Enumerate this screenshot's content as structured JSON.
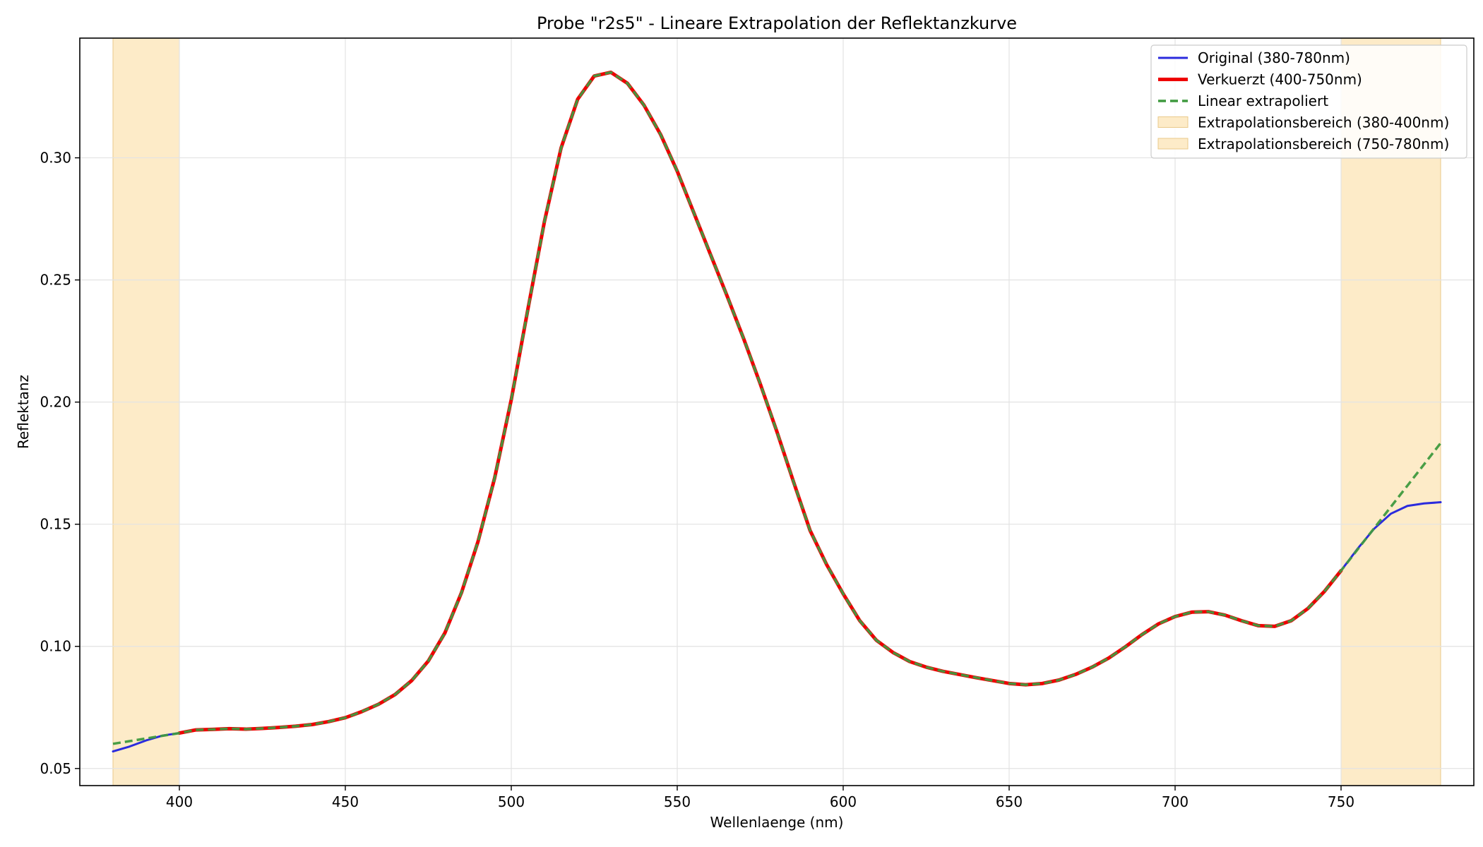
{
  "chart_data": {
    "type": "line",
    "title": "Probe \"r2s5\" - Lineare Extrapolation der Reflektanzkurve",
    "xlabel": "Wellenlaenge (nm)",
    "ylabel": "Reflektanz",
    "xlim": [
      370,
      790
    ],
    "ylim": [
      0.043,
      0.349
    ],
    "xticks": [
      400,
      450,
      500,
      550,
      600,
      650,
      700,
      750
    ],
    "xtick_labels": [
      "400",
      "450",
      "500",
      "550",
      "600",
      "650",
      "700",
      "750"
    ],
    "yticks": [
      0.05,
      0.1,
      0.15,
      0.2,
      0.25,
      0.3
    ],
    "ytick_labels": [
      "0.05",
      "0.10",
      "0.15",
      "0.20",
      "0.25",
      "0.30"
    ],
    "grid": true,
    "legend_position": "top-right",
    "spans": [
      {
        "name": "Extrapolationsbereich (380-400nm)",
        "x0": 380,
        "x1": 400,
        "color": "#fdebc8"
      },
      {
        "name": "Extrapolationsbereich (750-780nm)",
        "x0": 750,
        "x1": 780,
        "color": "#fdebc8"
      }
    ],
    "series": [
      {
        "name": "Original (380-780nm)",
        "color": "#2b2bdd",
        "style": "solid",
        "width": 3,
        "x": [
          380,
          385,
          390,
          395,
          400,
          405,
          410,
          415,
          420,
          425,
          430,
          435,
          440,
          445,
          450,
          455,
          460,
          465,
          470,
          475,
          480,
          485,
          490,
          495,
          500,
          505,
          510,
          515,
          520,
          525,
          530,
          535,
          540,
          545,
          550,
          555,
          560,
          565,
          570,
          575,
          580,
          585,
          590,
          595,
          600,
          605,
          610,
          615,
          620,
          625,
          630,
          635,
          640,
          645,
          650,
          655,
          660,
          665,
          670,
          675,
          680,
          685,
          690,
          695,
          700,
          705,
          710,
          715,
          720,
          725,
          730,
          735,
          740,
          745,
          750,
          755,
          760,
          765,
          770,
          775,
          780
        ],
        "y": [
          0.057,
          0.059,
          0.0615,
          0.0635,
          0.0645,
          0.0658,
          0.066,
          0.0663,
          0.0661,
          0.0664,
          0.0668,
          0.0673,
          0.068,
          0.0692,
          0.0708,
          0.0733,
          0.0763,
          0.0803,
          0.086,
          0.094,
          0.1055,
          0.122,
          0.143,
          0.169,
          0.201,
          0.238,
          0.274,
          0.304,
          0.324,
          0.3335,
          0.335,
          0.3305,
          0.3215,
          0.3095,
          0.2945,
          0.2775,
          0.2605,
          0.2435,
          0.226,
          0.2075,
          0.188,
          0.1675,
          0.1475,
          0.1335,
          0.1215,
          0.1105,
          0.1025,
          0.0975,
          0.0938,
          0.0915,
          0.0898,
          0.0885,
          0.0872,
          0.086,
          0.0848,
          0.0843,
          0.0848,
          0.0862,
          0.0885,
          0.0915,
          0.0952,
          0.0998,
          0.1048,
          0.1092,
          0.1122,
          0.114,
          0.1142,
          0.1128,
          0.1105,
          0.1085,
          0.1082,
          0.1105,
          0.1155,
          0.1225,
          0.131,
          0.14,
          0.1482,
          0.1543,
          0.1575,
          0.1585,
          0.159
        ]
      },
      {
        "name": "Verkuerzt (400-750nm)",
        "color": "#ee0000",
        "style": "solid",
        "width": 5,
        "x": [
          400,
          405,
          410,
          415,
          420,
          425,
          430,
          435,
          440,
          445,
          450,
          455,
          460,
          465,
          470,
          475,
          480,
          485,
          490,
          495,
          500,
          505,
          510,
          515,
          520,
          525,
          530,
          535,
          540,
          545,
          550,
          555,
          560,
          565,
          570,
          575,
          580,
          585,
          590,
          595,
          600,
          605,
          610,
          615,
          620,
          625,
          630,
          635,
          640,
          645,
          650,
          655,
          660,
          665,
          670,
          675,
          680,
          685,
          690,
          695,
          700,
          705,
          710,
          715,
          720,
          725,
          730,
          735,
          740,
          745,
          750
        ],
        "y": [
          0.0645,
          0.0658,
          0.066,
          0.0663,
          0.0661,
          0.0664,
          0.0668,
          0.0673,
          0.068,
          0.0692,
          0.0708,
          0.0733,
          0.0763,
          0.0803,
          0.086,
          0.094,
          0.1055,
          0.122,
          0.143,
          0.169,
          0.201,
          0.238,
          0.274,
          0.304,
          0.324,
          0.3335,
          0.335,
          0.3305,
          0.3215,
          0.3095,
          0.2945,
          0.2775,
          0.2605,
          0.2435,
          0.226,
          0.2075,
          0.188,
          0.1675,
          0.1475,
          0.1335,
          0.1215,
          0.1105,
          0.1025,
          0.0975,
          0.0938,
          0.0915,
          0.0898,
          0.0885,
          0.0872,
          0.086,
          0.0848,
          0.0843,
          0.0848,
          0.0862,
          0.0885,
          0.0915,
          0.0952,
          0.0998,
          0.1048,
          0.1092,
          0.1122,
          0.114,
          0.1142,
          0.1128,
          0.1105,
          0.1085,
          0.1082,
          0.1105,
          0.1155,
          0.1225,
          0.131
        ]
      },
      {
        "name": "Linear extrapoliert",
        "color": "#3f9a3f",
        "style": "dashed",
        "width": 3.5,
        "x": [
          380,
          385,
          390,
          395,
          400,
          405,
          410,
          415,
          420,
          425,
          430,
          435,
          440,
          445,
          450,
          455,
          460,
          465,
          470,
          475,
          480,
          485,
          490,
          495,
          500,
          505,
          510,
          515,
          520,
          525,
          530,
          535,
          540,
          545,
          550,
          555,
          560,
          565,
          570,
          575,
          580,
          585,
          590,
          595,
          600,
          605,
          610,
          615,
          620,
          625,
          630,
          635,
          640,
          645,
          650,
          655,
          660,
          665,
          670,
          675,
          680,
          685,
          690,
          695,
          700,
          705,
          710,
          715,
          720,
          725,
          730,
          735,
          740,
          745,
          750,
          755,
          760,
          765,
          770,
          775,
          780
        ],
        "y": [
          0.0601,
          0.0612,
          0.0623,
          0.0634,
          0.0645,
          0.0658,
          0.066,
          0.0663,
          0.0661,
          0.0664,
          0.0668,
          0.0673,
          0.068,
          0.0692,
          0.0708,
          0.0733,
          0.0763,
          0.0803,
          0.086,
          0.094,
          0.1055,
          0.122,
          0.143,
          0.169,
          0.201,
          0.238,
          0.274,
          0.304,
          0.324,
          0.3335,
          0.335,
          0.3305,
          0.3215,
          0.3095,
          0.2945,
          0.2775,
          0.2605,
          0.2435,
          0.226,
          0.2075,
          0.188,
          0.1675,
          0.1475,
          0.1335,
          0.1215,
          0.1105,
          0.1025,
          0.0975,
          0.0938,
          0.0915,
          0.0898,
          0.0885,
          0.0872,
          0.086,
          0.0848,
          0.0843,
          0.0848,
          0.0862,
          0.0885,
          0.0915,
          0.0952,
          0.0998,
          0.1048,
          0.1092,
          0.1122,
          0.114,
          0.1142,
          0.1128,
          0.1105,
          0.1085,
          0.1082,
          0.1105,
          0.1155,
          0.1225,
          0.131,
          0.1397,
          0.1484,
          0.1571,
          0.1658,
          0.1745,
          0.1832
        ]
      }
    ]
  }
}
